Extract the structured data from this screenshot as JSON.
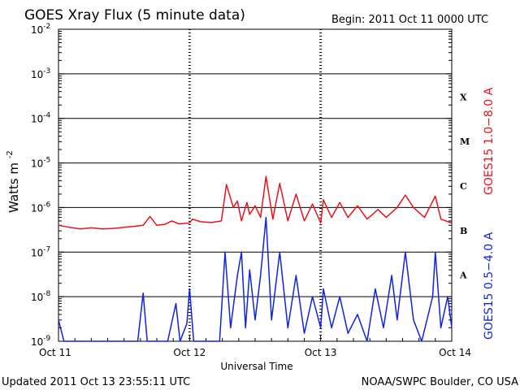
{
  "header": {
    "title": "GOES Xray Flux (5 minute data)",
    "begin": "Begin:  2011 Oct 11 0000 UTC"
  },
  "footer": {
    "updated": "Updated 2011 Oct 13 23:55:11 UTC",
    "credit": "NOAA/SWPC Boulder, CO USA"
  },
  "colors": {
    "long_channel": "#e8141c",
    "short_channel": "#0f23e6",
    "frame": "#000000"
  },
  "chart_data": {
    "type": "line",
    "title": "GOES Xray Flux (5 minute data)",
    "xlabel": "Universal Time",
    "ylabel": "Watts m",
    "ylabel_superscript": "-2",
    "yscale": "log",
    "ylim": [
      1e-09,
      0.01
    ],
    "xlim": [
      "2011-10-11 00:00",
      "2011-10-14 00:00"
    ],
    "x_ticks": [
      "Oct 11",
      "Oct 12",
      "Oct 13",
      "Oct 14"
    ],
    "y_ticks": [
      {
        "base": "10",
        "exp": "-9"
      },
      {
        "base": "10",
        "exp": "-8"
      },
      {
        "base": "10",
        "exp": "-7"
      },
      {
        "base": "10",
        "exp": "-6"
      },
      {
        "base": "10",
        "exp": "-5"
      },
      {
        "base": "10",
        "exp": "-4"
      },
      {
        "base": "10",
        "exp": "-3"
      },
      {
        "base": "10",
        "exp": "-2"
      }
    ],
    "flare_classes": [
      {
        "label": "A",
        "level": 1e-08
      },
      {
        "label": "B",
        "level": 1e-07
      },
      {
        "label": "C",
        "level": 1e-06
      },
      {
        "label": "M",
        "level": 1e-05
      },
      {
        "label": "X",
        "level": 0.0001
      }
    ],
    "grid": "horizontal lines at each decade; dotted vertical lines at day boundaries",
    "legend_placement": "right (vertical text)",
    "series": [
      {
        "name": "GOES15 1.0−8.0 A",
        "color": "#e8141c",
        "points": [
          [
            "2011-10-11 00:00",
            4e-07
          ],
          [
            "2011-10-11 02:00",
            3.6e-07
          ],
          [
            "2011-10-11 04:00",
            3.3e-07
          ],
          [
            "2011-10-11 06:00",
            3.5e-07
          ],
          [
            "2011-10-11 08:00",
            3.3e-07
          ],
          [
            "2011-10-11 10:00",
            3.4e-07
          ],
          [
            "2011-10-11 12:00",
            3.6e-07
          ],
          [
            "2011-10-11 14:00",
            3.8e-07
          ],
          [
            "2011-10-11 15:30",
            4e-07
          ],
          [
            "2011-10-11 16:45",
            6.3e-07
          ],
          [
            "2011-10-11 18:00",
            4e-07
          ],
          [
            "2011-10-11 19:30",
            4.2e-07
          ],
          [
            "2011-10-11 20:45",
            5e-07
          ],
          [
            "2011-10-11 22:00",
            4.3e-07
          ],
          [
            "2011-10-12 00:00",
            4.5e-07
          ],
          [
            "2011-10-12 00:30",
            5.5e-07
          ],
          [
            "2011-10-12 02:00",
            4.8e-07
          ],
          [
            "2011-10-12 04:00",
            4.6e-07
          ],
          [
            "2011-10-12 05:50",
            5e-07
          ],
          [
            "2011-10-12 06:45",
            3.3e-06
          ],
          [
            "2011-10-12 08:00",
            1e-06
          ],
          [
            "2011-10-12 08:45",
            1.4e-06
          ],
          [
            "2011-10-12 09:30",
            5e-07
          ],
          [
            "2011-10-12 10:30",
            1.3e-06
          ],
          [
            "2011-10-12 11:00",
            7e-07
          ],
          [
            "2011-10-12 12:00",
            1.1e-06
          ],
          [
            "2011-10-12 13:00",
            6e-07
          ],
          [
            "2011-10-12 14:00",
            5e-06
          ],
          [
            "2011-10-12 15:15",
            5.5e-07
          ],
          [
            "2011-10-12 16:30",
            3.5e-06
          ],
          [
            "2011-10-12 18:00",
            5e-07
          ],
          [
            "2011-10-12 19:30",
            2e-06
          ],
          [
            "2011-10-12 21:00",
            5e-07
          ],
          [
            "2011-10-12 22:30",
            1.2e-06
          ],
          [
            "2011-10-13 00:00",
            4.5e-07
          ],
          [
            "2011-10-13 00:30",
            1.5e-06
          ],
          [
            "2011-10-13 02:00",
            6e-07
          ],
          [
            "2011-10-13 03:30",
            1.3e-06
          ],
          [
            "2011-10-13 05:00",
            6e-07
          ],
          [
            "2011-10-13 06:45",
            1.1e-06
          ],
          [
            "2011-10-13 08:30",
            5.5e-07
          ],
          [
            "2011-10-13 10:30",
            9e-07
          ],
          [
            "2011-10-13 12:00",
            6e-07
          ],
          [
            "2011-10-13 14:00",
            1e-06
          ],
          [
            "2011-10-13 15:30",
            1.9e-06
          ],
          [
            "2011-10-13 17:00",
            1e-06
          ],
          [
            "2011-10-13 19:00",
            6e-07
          ],
          [
            "2011-10-13 21:00",
            1.8e-06
          ],
          [
            "2011-10-13 22:00",
            5.5e-07
          ],
          [
            "2011-10-14 00:00",
            4.5e-07
          ]
        ]
      },
      {
        "name": "GOES15 0.5−4.0 A",
        "color": "#0f23e6",
        "points": [
          [
            "2011-10-11 00:00",
            3e-09
          ],
          [
            "2011-10-11 01:00",
            1e-09
          ],
          [
            "2011-10-11 06:00",
            1e-09
          ],
          [
            "2011-10-11 12:00",
            1e-09
          ],
          [
            "2011-10-11 14:30",
            1e-09
          ],
          [
            "2011-10-11 15:30",
            1.2e-08
          ],
          [
            "2011-10-11 16:15",
            1e-09
          ],
          [
            "2011-10-11 20:00",
            1e-09
          ],
          [
            "2011-10-11 21:30",
            7e-09
          ],
          [
            "2011-10-11 22:15",
            1e-09
          ],
          [
            "2011-10-11 23:30",
            2.5e-09
          ],
          [
            "2011-10-12 00:00",
            1.5e-08
          ],
          [
            "2011-10-12 00:45",
            1e-09
          ],
          [
            "2011-10-12 05:30",
            1e-09
          ],
          [
            "2011-10-12 06:30",
            1e-07
          ],
          [
            "2011-10-12 07:30",
            2e-09
          ],
          [
            "2011-10-12 08:45",
            3e-08
          ],
          [
            "2011-10-12 09:30",
            1e-07
          ],
          [
            "2011-10-12 10:15",
            2e-09
          ],
          [
            "2011-10-12 11:00",
            4e-08
          ],
          [
            "2011-10-12 12:00",
            3e-09
          ],
          [
            "2011-10-12 13:00",
            3e-08
          ],
          [
            "2011-10-12 14:00",
            6e-07
          ],
          [
            "2011-10-12 15:00",
            3e-09
          ],
          [
            "2011-10-12 16:30",
            1e-07
          ],
          [
            "2011-10-12 18:00",
            2e-09
          ],
          [
            "2011-10-12 19:30",
            3e-08
          ],
          [
            "2011-10-12 21:00",
            1.5e-09
          ],
          [
            "2011-10-12 22:30",
            1e-08
          ],
          [
            "2011-10-13 00:00",
            2e-09
          ],
          [
            "2011-10-13 00:30",
            1.5e-08
          ],
          [
            "2011-10-13 02:00",
            2e-09
          ],
          [
            "2011-10-13 03:30",
            1e-08
          ],
          [
            "2011-10-13 05:00",
            1.5e-09
          ],
          [
            "2011-10-13 06:45",
            4e-09
          ],
          [
            "2011-10-13 08:30",
            1e-09
          ],
          [
            "2011-10-13 10:00",
            1.5e-08
          ],
          [
            "2011-10-13 11:30",
            2e-09
          ],
          [
            "2011-10-13 13:00",
            3e-08
          ],
          [
            "2011-10-13 14:00",
            3e-09
          ],
          [
            "2011-10-13 15:30",
            1e-07
          ],
          [
            "2011-10-13 17:00",
            3e-09
          ],
          [
            "2011-10-13 18:30",
            1e-09
          ],
          [
            "2011-10-13 20:30",
            1e-08
          ],
          [
            "2011-10-13 21:00",
            1e-07
          ],
          [
            "2011-10-13 22:00",
            2e-09
          ],
          [
            "2011-10-13 23:15",
            1e-08
          ],
          [
            "2011-10-14 00:00",
            2e-09
          ]
        ]
      }
    ]
  }
}
